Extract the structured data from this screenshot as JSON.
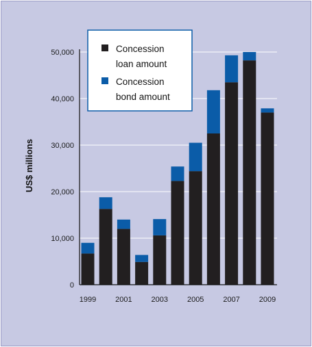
{
  "chart_data": {
    "type": "bar",
    "stacked": true,
    "title": "",
    "xlabel": "",
    "ylabel": "US$ millions",
    "ylim": [
      0,
      50000
    ],
    "yticks": [
      0,
      10000,
      20000,
      30000,
      40000,
      50000
    ],
    "ytick_labels": [
      "0",
      "10,000",
      "20,000",
      "30,000",
      "40,000",
      "50,000"
    ],
    "categories": [
      "1999",
      "2000",
      "2001",
      "2002",
      "2003",
      "2004",
      "2005",
      "2006",
      "2007",
      "2008",
      "2009"
    ],
    "xtick_labels": [
      "1999",
      "",
      "2001",
      "",
      "2003",
      "",
      "2005",
      "",
      "2007",
      "",
      "2009"
    ],
    "series": [
      {
        "name": "Concession loan amount",
        "legend_lines": [
          "Concession",
          "loan amount"
        ],
        "color": "#221f20",
        "values": [
          6700,
          16300,
          12000,
          4900,
          10600,
          22300,
          24400,
          32500,
          43500,
          48200,
          37000
        ]
      },
      {
        "name": "Concession bond amount",
        "legend_lines": [
          "Concession",
          "bond amount"
        ],
        "color": "#0b5ca8",
        "values": [
          2300,
          2500,
          2000,
          1500,
          3500,
          3100,
          6100,
          9300,
          5800,
          1800,
          900
        ]
      }
    ],
    "grid": true,
    "legend_position": "top-left"
  },
  "colors": {
    "background": "#c7c9e3",
    "gridline": "#ffffff",
    "axis": "#111111"
  }
}
